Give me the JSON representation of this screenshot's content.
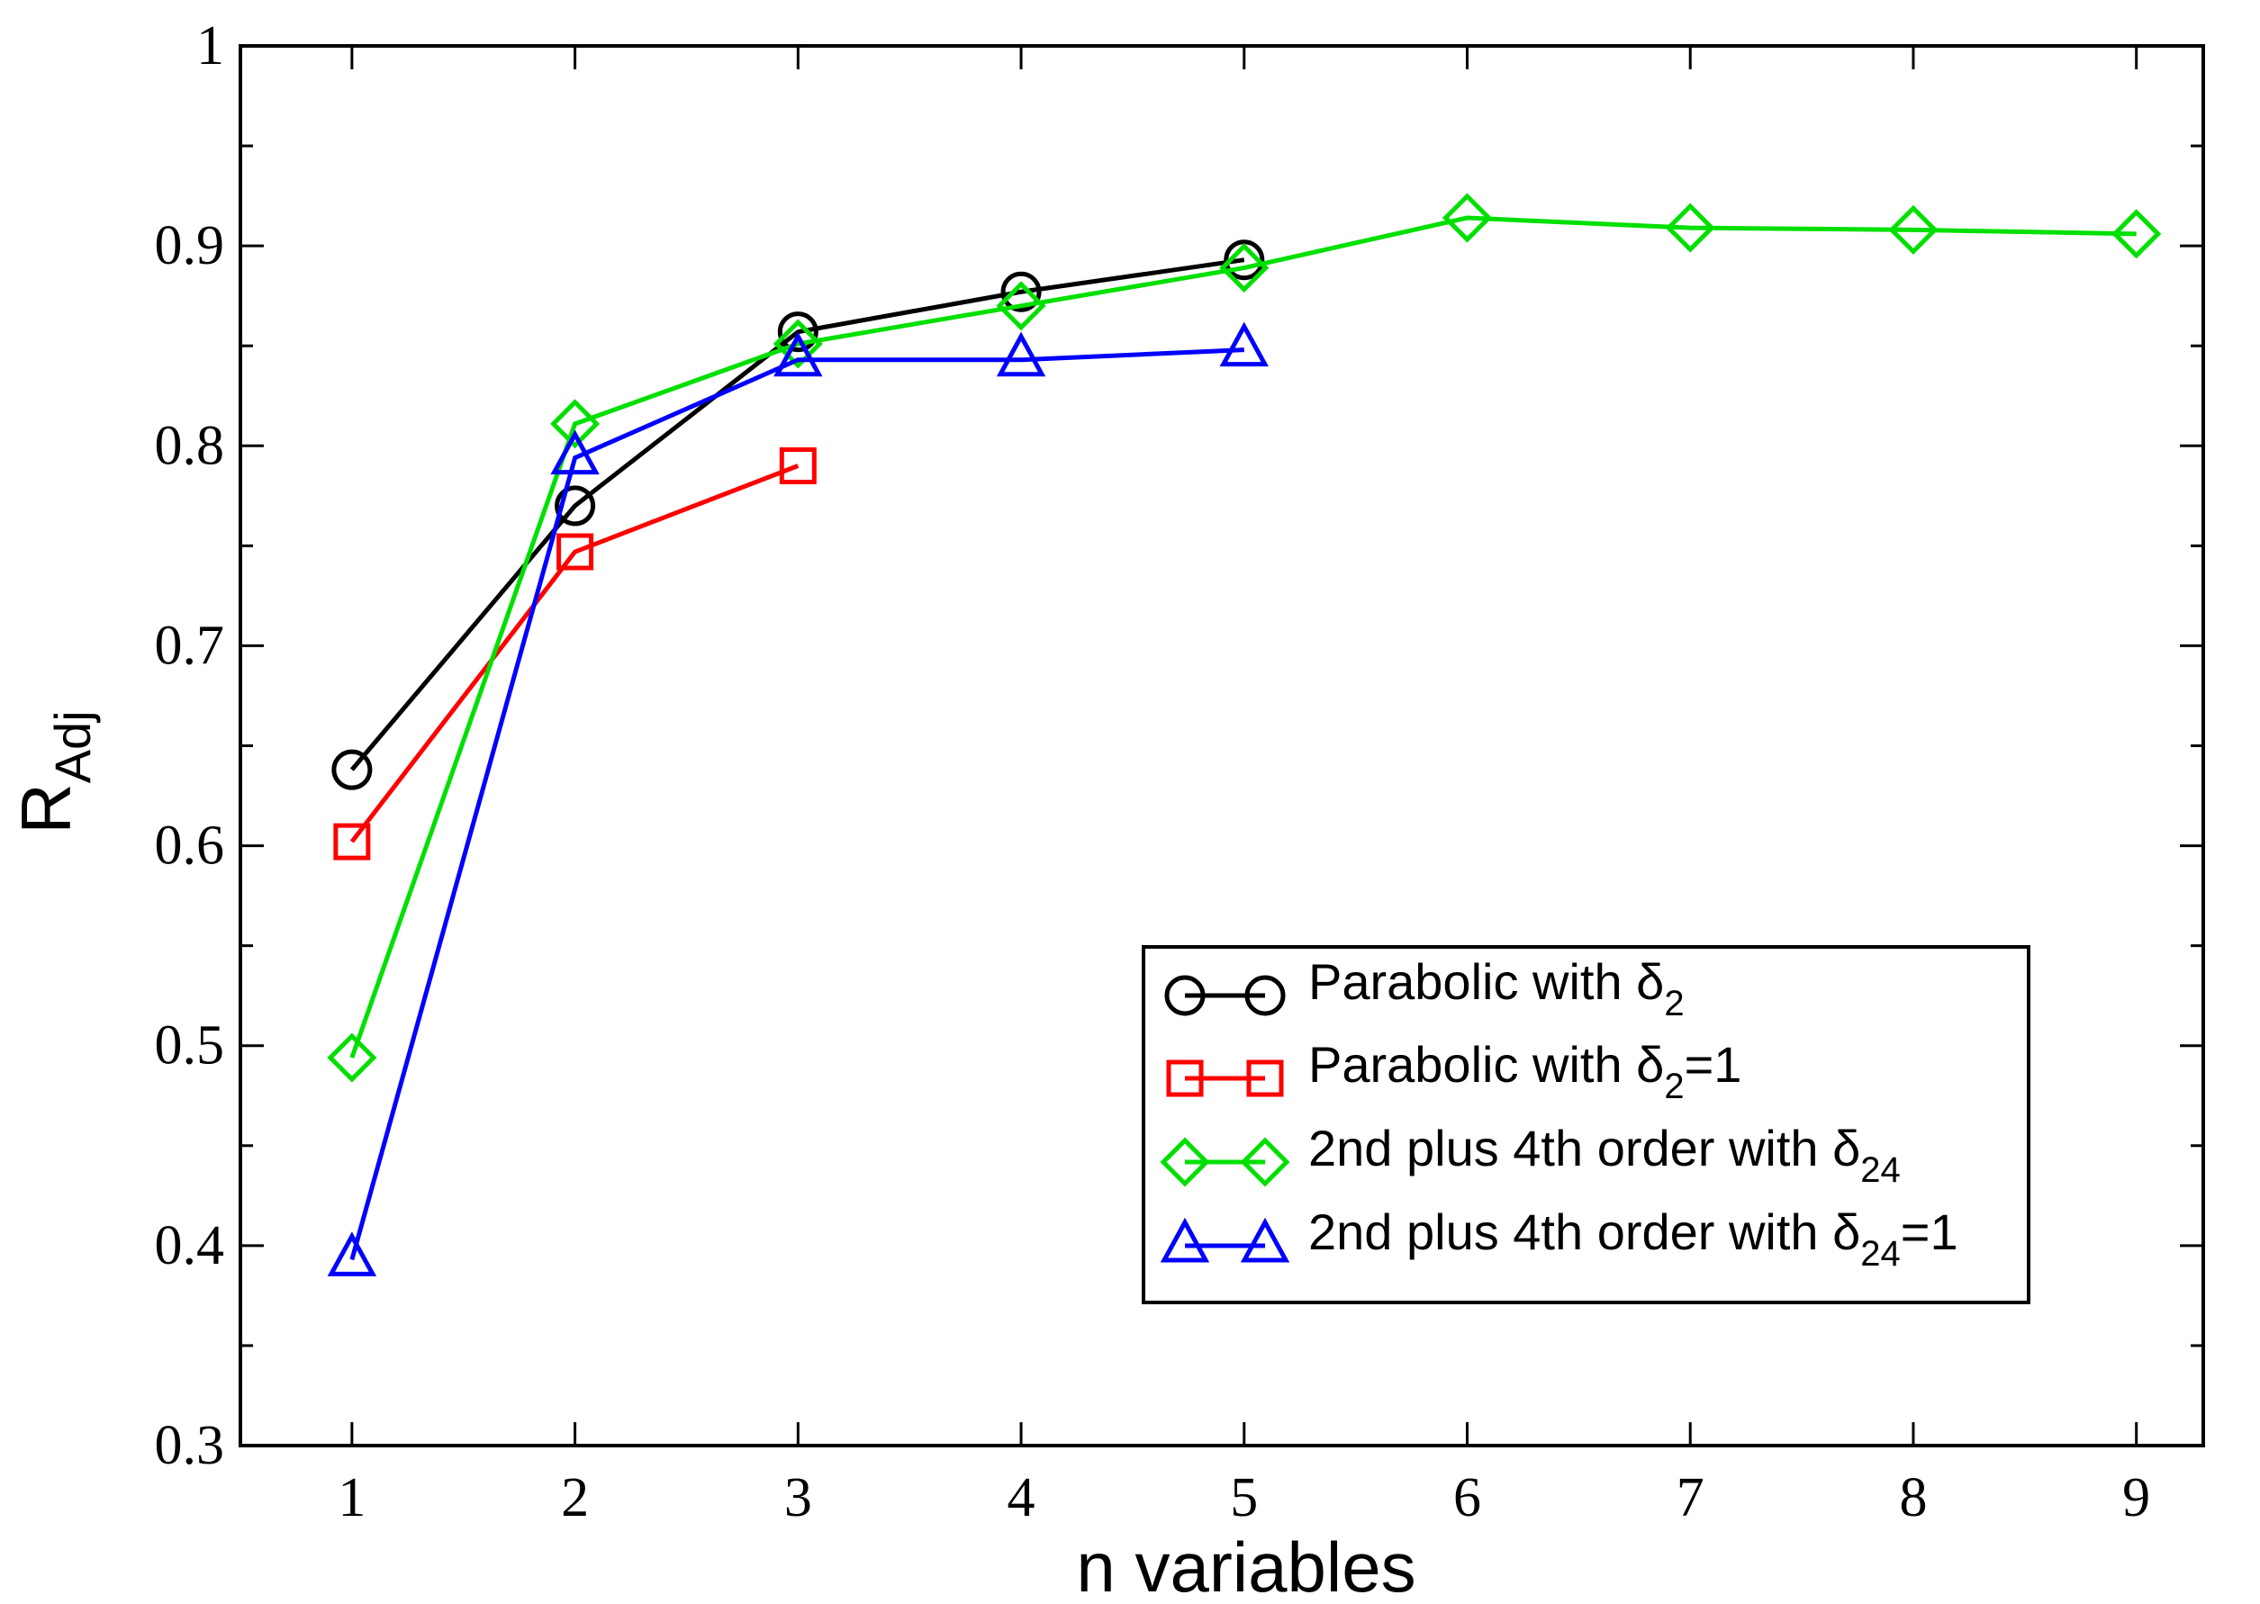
{
  "chart_data": {
    "type": "line",
    "xlabel": "n variables",
    "ylabel": {
      "base": "R",
      "sub": "Adj"
    },
    "xlim": [
      0.5,
      9.3
    ],
    "ylim": [
      0.3,
      1.0
    ],
    "xticks": [
      1,
      2,
      3,
      4,
      5,
      6,
      7,
      8,
      9
    ],
    "xtick_labels": [
      "1",
      "2",
      "3",
      "4",
      "5",
      "6",
      "7",
      "8",
      "9"
    ],
    "yticks": [
      0.3,
      0.4,
      0.5,
      0.6,
      0.7,
      0.8,
      0.9,
      1.0
    ],
    "ytick_labels": [
      "0.3",
      "0.4",
      "0.5",
      "0.6",
      "0.7",
      "0.8",
      "0.9",
      "1"
    ],
    "grid": false,
    "legend_position": "lower-right",
    "series": [
      {
        "name": "Parabolic with δ2",
        "label_main": "Parabolic with δ",
        "label_sub": "2",
        "label_tail": "",
        "color": "#000000",
        "marker": "circle",
        "x": [
          1,
          2,
          3,
          4,
          5
        ],
        "y": [
          0.638,
          0.77,
          0.857,
          0.877,
          0.893
        ]
      },
      {
        "name": "Parabolic with δ2=1",
        "label_main": "Parabolic with δ",
        "label_sub": "2",
        "label_tail": "=1",
        "color": "#ff0000",
        "marker": "square",
        "x": [
          1,
          2,
          3
        ],
        "y": [
          0.602,
          0.747,
          0.79
        ]
      },
      {
        "name": "2nd plus 4th order with δ24",
        "label_main": "2nd plus 4th order with δ",
        "label_sub": "24",
        "label_tail": "",
        "color": "#00e000",
        "marker": "diamond",
        "x": [
          1,
          2,
          3,
          4,
          5,
          6,
          7,
          8,
          9
        ],
        "y": [
          0.494,
          0.811,
          0.851,
          0.87,
          0.889,
          0.914,
          0.909,
          0.908,
          0.906
        ]
      },
      {
        "name": "2nd plus 4th order with δ24=1",
        "label_main": "2nd plus 4th order with δ",
        "label_sub": "24",
        "label_tail": "=1",
        "color": "#0000ff",
        "marker": "triangle",
        "x": [
          1,
          2,
          3,
          4,
          5
        ],
        "y": [
          0.393,
          0.794,
          0.843,
          0.843,
          0.848
        ]
      }
    ]
  }
}
